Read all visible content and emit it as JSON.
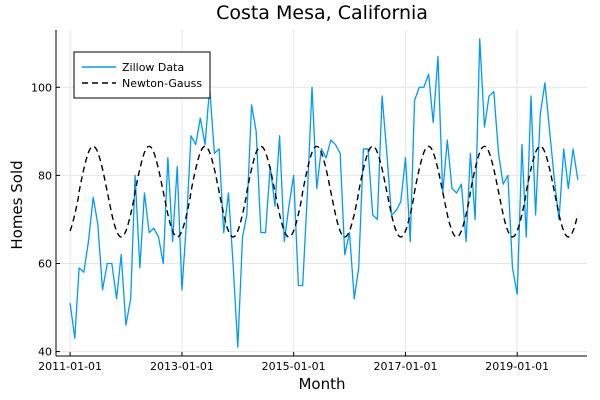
{
  "chart_data": {
    "type": "line",
    "title": "Costa Mesa, California",
    "xlabel": "Month",
    "ylabel": "Homes Sold",
    "x_start": "2011-01-01",
    "xticks": [
      "2011-01-01",
      "2013-01-01",
      "2015-01-01",
      "2017-01-01",
      "2019-01-01"
    ],
    "yticks": [
      40,
      60,
      80,
      100
    ],
    "ylim": [
      39,
      113
    ],
    "xlim": [
      "2010-10-01",
      "2020-04-01"
    ],
    "grid": true,
    "legend_position": "top-left",
    "series": [
      {
        "name": "Zillow Data",
        "color": "#009af9",
        "style": "solid",
        "values": [
          51,
          43,
          59,
          58,
          65,
          75,
          69,
          54,
          60,
          60,
          52,
          62,
          46,
          52,
          80,
          59,
          76,
          67,
          68,
          66,
          60,
          84,
          65,
          82,
          54,
          70,
          89,
          87,
          93,
          87,
          100,
          85,
          86,
          67,
          76,
          60,
          41,
          66,
          71,
          96,
          90,
          67,
          67,
          82,
          73,
          89,
          65,
          73,
          80,
          55,
          55,
          76,
          100,
          77,
          86,
          84,
          88,
          87,
          85,
          62,
          67,
          52,
          59,
          86,
          86,
          71,
          70,
          98,
          85,
          71,
          72,
          74,
          84,
          65,
          97,
          100,
          100,
          103,
          92,
          107,
          76,
          88,
          77,
          76,
          78,
          65,
          85,
          70,
          111,
          91,
          98,
          99,
          85,
          78,
          80,
          59,
          53,
          87,
          66,
          98,
          71,
          94,
          101,
          90,
          79,
          70,
          86,
          77,
          86,
          79
        ],
        "values_end": "2020-02-01"
      },
      {
        "name": "Newton-Gauss",
        "color": "#000000",
        "style": "dashed",
        "function": {
          "type": "sine",
          "mean": 76.3,
          "amplitude": 10.3,
          "period_months": 12,
          "peak_month": 5
        }
      }
    ]
  }
}
